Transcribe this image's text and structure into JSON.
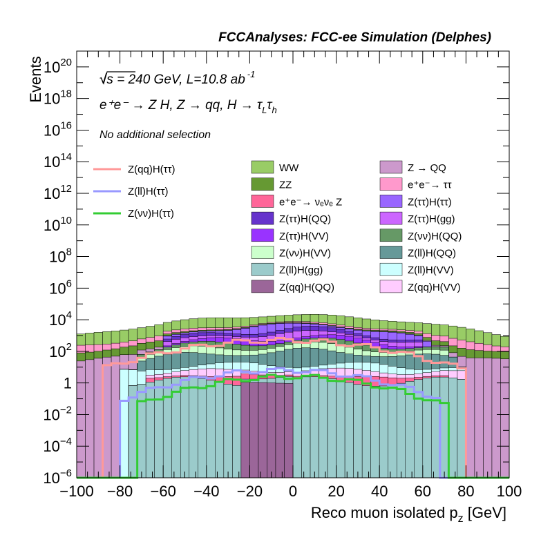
{
  "header": {
    "title": "FCCAnalyses: FCC-ee Simulation (Delphes)",
    "energy_line": "√s = 240 GeV, L=10.8 ab",
    "lumi_exponent": "-1",
    "process_line": "e⁺e⁻ → Z H, Z → qq, H → τ",
    "process_sub1": "L",
    "process_tau2": "τ",
    "process_sub2": "h",
    "selection": "No additional selection"
  },
  "chart_data": {
    "type": "bar",
    "stacked": true,
    "log_y": true,
    "xlabel": "Reco muon isolated p",
    "xlabel_sub": "z",
    "xlabel_unit": " [GeV]",
    "ylabel": "Events",
    "xlim": [
      -100,
      100
    ],
    "ylim": [
      1e-06,
      1e+21
    ],
    "x_ticks": [
      "−100",
      "−80",
      "−60",
      "−40",
      "−20",
      "0",
      "20",
      "40",
      "60",
      "80",
      "100"
    ],
    "y_ticks": [
      {
        "mantissa": "10",
        "exp": "−6"
      },
      {
        "mantissa": "10",
        "exp": "−4"
      },
      {
        "mantissa": "10",
        "exp": "−2"
      },
      {
        "mantissa": "1",
        "exp": ""
      },
      {
        "mantissa": "10",
        "exp": "2"
      },
      {
        "mantissa": "10",
        "exp": "4"
      },
      {
        "mantissa": "10",
        "exp": "6"
      },
      {
        "mantissa": "10",
        "exp": "8"
      },
      {
        "mantissa": "10",
        "exp": "10"
      },
      {
        "mantissa": "10",
        "exp": "12"
      },
      {
        "mantissa": "10",
        "exp": "14"
      },
      {
        "mantissa": "10",
        "exp": "16"
      },
      {
        "mantissa": "10",
        "exp": "18"
      },
      {
        "mantissa": "10",
        "exp": "20"
      }
    ],
    "stack_layers": [
      {
        "name": "Z(qq)H(QQ)",
        "color": "#9b6699",
        "profile": [
          -25,
          0,
          0,
          0.1
        ]
      },
      {
        "name": "Z(ll)H(gg)",
        "color": "#9bcbcb",
        "profile": [
          -77,
          80,
          0.1,
          0.6
        ]
      },
      {
        "name": "e⁺e⁻→ νₑνₑ Z",
        "color": "#ff6699",
        "profile": [
          -67,
          70,
          0,
          0.6
        ]
      },
      {
        "name": "Z(qq)H(VV)",
        "color": "#ffccff",
        "profile": [
          -68,
          78,
          0.5,
          0.6
        ]
      },
      {
        "name": "Z(ll)H(VV)",
        "color": "#ccffff",
        "profile": [
          -78,
          78,
          0.9,
          0.6
        ]
      },
      {
        "name": "Z(ll)H(QQ)",
        "color": "#669999",
        "profile": [
          -70,
          75,
          1.9,
          0.6
        ]
      },
      {
        "name": "Z(νν)H(VV)",
        "color": "#ccffcc",
        "profile": [
          -72,
          72,
          2.1,
          0.6
        ]
      },
      {
        "name": "Z(νν)H(QQ)",
        "color": "#669966",
        "profile": [
          -70,
          72,
          2.3,
          0.6
        ]
      },
      {
        "name": "Z(ττ)H(VV)",
        "color": "#9933ff",
        "profile": [
          -60,
          60,
          2.5,
          0.6
        ]
      },
      {
        "name": "Z(ττ)H(gg)",
        "color": "#cc66ff",
        "profile": [
          -60,
          60,
          2.8,
          0.6
        ]
      },
      {
        "name": "Z(ττ)H(QQ)",
        "color": "#6633cc",
        "profile": [
          -58,
          58,
          3.0,
          0.6
        ]
      },
      {
        "name": "Z(ττ)H(ττ)",
        "color": "#9966ff",
        "profile": [
          -60,
          62,
          3.3,
          0.6
        ]
      },
      {
        "name": "Z → QQ",
        "color": "#cc99cc",
        "profile": [
          -100,
          100,
          2.0,
          0.2
        ]
      },
      {
        "name": "ZZ",
        "color": "#669933",
        "profile": [
          -100,
          100,
          2.6,
          0.3
        ]
      },
      {
        "name": "e⁺e⁻→ ττ",
        "color": "#ff99cc",
        "profile": [
          -100,
          100,
          3.0,
          0.3
        ]
      },
      {
        "name": "WW",
        "color": "#99cc66",
        "profile": [
          -100,
          100,
          4.1,
          0.2
        ]
      }
    ],
    "overlay_lines": [
      {
        "name": "Z(qq)H(ττ)",
        "color": "#ff9999",
        "range": [
          -88,
          78
        ],
        "peak_log": 2.7
      },
      {
        "name": "Z(ll)H(ττ)",
        "color": "#9999ff",
        "range": [
          -78,
          68
        ],
        "peak_log": 0.8
      },
      {
        "name": "Z(νν)H(ττ)",
        "color": "#33cc33",
        "range": [
          -72,
          70
        ],
        "peak_log": 0.4
      }
    ],
    "legend_lines": [
      "Z(qq)H(ττ)",
      "Z(ll)H(ττ)",
      "Z(νν)H(ττ)"
    ],
    "legend_fill_col1": [
      {
        "label": "WW",
        "color": "#99cc66"
      },
      {
        "label": "ZZ",
        "color": "#669933"
      },
      {
        "label": "e⁺e⁻→ νₑνₑ Z",
        "color": "#ff6699"
      },
      {
        "label": "Z(ττ)H(QQ)",
        "color": "#6633cc"
      },
      {
        "label": "Z(ττ)H(VV)",
        "color": "#9933ff"
      },
      {
        "label": "Z(νν)H(VV)",
        "color": "#ccffcc"
      },
      {
        "label": "Z(ll)H(gg)",
        "color": "#9bcbcb"
      },
      {
        "label": "Z(qq)H(QQ)",
        "color": "#9b6699"
      }
    ],
    "legend_fill_col2": [
      {
        "label": "Z → QQ",
        "color": "#cc99cc"
      },
      {
        "label": "e⁺e⁻→ ττ",
        "color": "#ff99cc"
      },
      {
        "label": "Z(ττ)H(ττ)",
        "color": "#9966ff"
      },
      {
        "label": "Z(ττ)H(gg)",
        "color": "#cc66ff"
      },
      {
        "label": "Z(νν)H(QQ)",
        "color": "#669966"
      },
      {
        "label": "Z(ll)H(QQ)",
        "color": "#669999"
      },
      {
        "label": "Z(ll)H(VV)",
        "color": "#ccffff"
      },
      {
        "label": "Z(qq)H(VV)",
        "color": "#ffccff"
      }
    ]
  }
}
